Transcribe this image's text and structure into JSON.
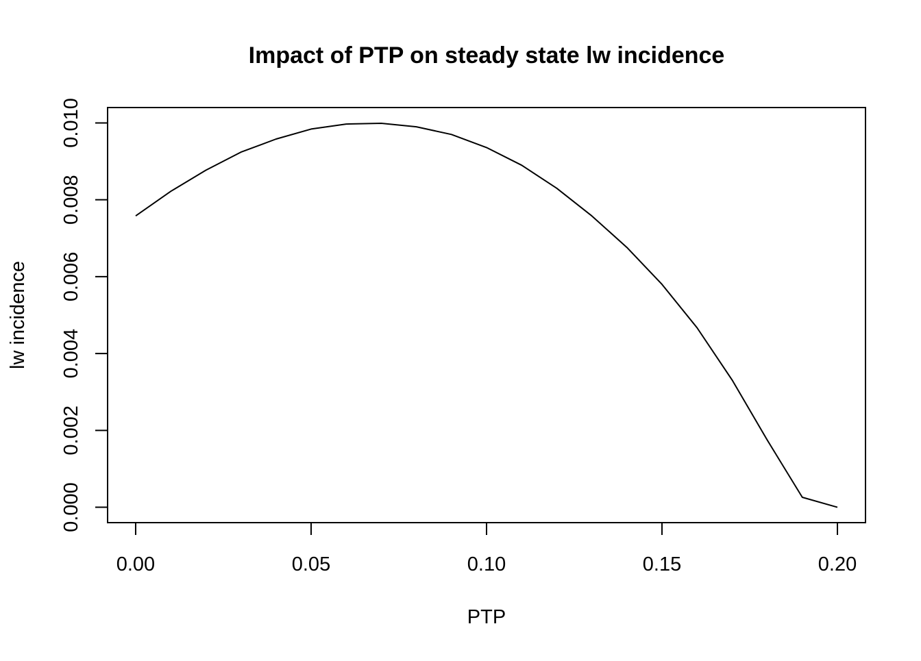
{
  "chart_data": {
    "type": "line",
    "title": "Impact of PTP on steady state lw incidence",
    "xlabel": "PTP",
    "ylabel": "lw incidence",
    "xlim": [
      -0.008,
      0.208
    ],
    "ylim": [
      -0.0004,
      0.0104
    ],
    "x_ticks": [
      0.0,
      0.05,
      0.1,
      0.15,
      0.2
    ],
    "x_tick_labels": [
      "0.00",
      "0.05",
      "0.10",
      "0.15",
      "0.20"
    ],
    "y_ticks": [
      0.0,
      0.002,
      0.004,
      0.006,
      0.008,
      0.01
    ],
    "y_tick_labels": [
      "0.000",
      "0.002",
      "0.004",
      "0.006",
      "0.008",
      "0.010"
    ],
    "grid": false,
    "line_color": "#000000",
    "series": [
      {
        "x": [
          0.0,
          0.01,
          0.02,
          0.03,
          0.04,
          0.05,
          0.06,
          0.07,
          0.08,
          0.09,
          0.1,
          0.11,
          0.12,
          0.13,
          0.14,
          0.15,
          0.16,
          0.17,
          0.18,
          0.19,
          0.2
        ],
        "values": [
          0.00758,
          0.00822,
          0.00877,
          0.00924,
          0.00958,
          0.00984,
          0.00997,
          0.00999,
          0.0099,
          0.0097,
          0.00936,
          0.0089,
          0.0083,
          0.00758,
          0.00676,
          0.0058,
          0.00467,
          0.00331,
          0.00175,
          0.00026,
          0.0
        ]
      }
    ]
  }
}
